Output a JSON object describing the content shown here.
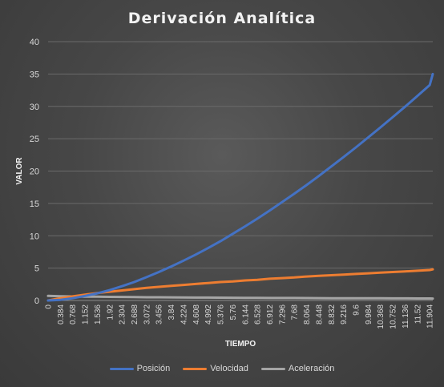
{
  "chart_data": {
    "type": "line",
    "title": "Derivación  Analítica",
    "xlabel": "TIEMPO",
    "ylabel": "VALOR",
    "ylim": [
      0,
      40
    ],
    "yticks": [
      "0",
      "5",
      "10",
      "15",
      "20",
      "25",
      "30",
      "35",
      "40"
    ],
    "xticks": [
      "0",
      "0.384",
      "0.768",
      "1.152",
      "1.536",
      "1.92",
      "2.304",
      "2.688",
      "3.072",
      "3.456",
      "3.84",
      "4.224",
      "4.608",
      "4.992",
      "5.376",
      "5.76",
      "6.144",
      "6.528",
      "6.912",
      "7.296",
      "7.68",
      "8.064",
      "8.448",
      "8.832",
      "9.216",
      "9.6",
      "9.984",
      "10.368",
      "10.752",
      "11.136",
      "11.52",
      "11.904"
    ],
    "xlim": [
      0,
      12.0
    ],
    "grid": true,
    "legend": "bottom",
    "series": [
      {
        "name": "Posición",
        "color": "#4472C4",
        "x": [
          0,
          0.384,
          0.768,
          1.152,
          1.536,
          1.92,
          2.304,
          2.688,
          3.072,
          3.456,
          3.84,
          4.224,
          4.608,
          4.992,
          5.376,
          5.76,
          6.144,
          6.528,
          6.912,
          7.296,
          7.68,
          8.064,
          8.448,
          8.832,
          9.216,
          9.6,
          9.984,
          10.368,
          10.752,
          11.136,
          11.52,
          11.904,
          12.0
        ],
        "values": [
          0,
          0.1,
          0.35,
          0.7,
          1.1,
          1.6,
          2.2,
          2.85,
          3.6,
          4.4,
          5.25,
          6.15,
          7.1,
          8.1,
          9.15,
          10.3,
          11.45,
          12.65,
          13.9,
          15.2,
          16.5,
          17.85,
          19.25,
          20.7,
          22.15,
          23.65,
          25.2,
          26.75,
          28.35,
          29.95,
          31.6,
          33.3,
          35.0
        ]
      },
      {
        "name": "Velocidad",
        "color": "#ED7D31",
        "x": [
          0,
          0.384,
          0.768,
          1.152,
          1.536,
          1.92,
          2.304,
          2.688,
          3.072,
          3.456,
          3.84,
          4.224,
          4.608,
          4.992,
          5.376,
          5.76,
          6.144,
          6.528,
          6.912,
          7.296,
          7.68,
          8.064,
          8.448,
          8.832,
          9.216,
          9.6,
          9.984,
          10.368,
          10.752,
          11.136,
          11.52,
          11.904,
          12.0
        ],
        "values": [
          0,
          0.35,
          0.65,
          0.9,
          1.15,
          1.35,
          1.55,
          1.75,
          1.95,
          2.1,
          2.25,
          2.4,
          2.55,
          2.7,
          2.85,
          2.95,
          3.1,
          3.2,
          3.35,
          3.45,
          3.55,
          3.7,
          3.8,
          3.9,
          4.0,
          4.1,
          4.2,
          4.3,
          4.4,
          4.5,
          4.6,
          4.7,
          4.8
        ]
      },
      {
        "name": "Aceleración",
        "color": "#A5A5A5",
        "x": [
          0,
          0.384,
          0.768,
          1.152,
          1.536,
          1.92,
          2.304,
          2.688,
          3.072,
          3.456,
          3.84,
          4.224,
          4.608,
          4.992,
          5.376,
          5.76,
          6.144,
          6.528,
          6.912,
          7.296,
          7.68,
          8.064,
          8.448,
          8.832,
          9.216,
          9.6,
          9.984,
          10.368,
          10.752,
          11.136,
          11.52,
          11.904,
          12.0
        ],
        "values": [
          0.7,
          0.65,
          0.62,
          0.6,
          0.58,
          0.56,
          0.54,
          0.52,
          0.5,
          0.49,
          0.48,
          0.46,
          0.45,
          0.44,
          0.43,
          0.42,
          0.41,
          0.4,
          0.39,
          0.38,
          0.38,
          0.37,
          0.36,
          0.35,
          0.35,
          0.34,
          0.33,
          0.33,
          0.32,
          0.32,
          0.31,
          0.31,
          0.3
        ]
      }
    ]
  }
}
